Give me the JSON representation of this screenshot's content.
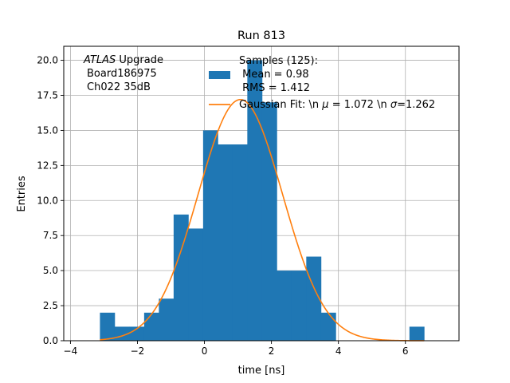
{
  "chart_data": {
    "type": "bar",
    "title": "Run 813",
    "xlabel": "time [ns]",
    "ylabel": "Entries",
    "xlim": [
      -4.2,
      7.6
    ],
    "ylim": [
      0,
      21
    ],
    "grid": true,
    "xticks": [
      -4,
      -2,
      0,
      2,
      4,
      6
    ],
    "xtick_labels": [
      "−4",
      "−2",
      "0",
      "2",
      "4",
      "6"
    ],
    "yticks": [
      0,
      2.5,
      5,
      7.5,
      10,
      12.5,
      15,
      17.5,
      20
    ],
    "ytick_labels": [
      "0.0",
      "2.5",
      "5.0",
      "7.5",
      "10.0",
      "12.5",
      "15.0",
      "17.5",
      "20.0"
    ],
    "bin_edges": [
      -3.12,
      -2.68,
      -2.24,
      -1.8,
      -1.36,
      -0.92,
      -0.48,
      -0.04,
      0.4,
      0.84,
      1.28,
      1.72,
      2.16,
      2.6,
      3.04,
      3.48,
      3.92,
      4.36,
      4.8,
      5.24,
      5.68,
      6.12,
      6.56
    ],
    "counts": [
      2,
      1,
      1,
      2,
      3,
      9,
      8,
      15,
      14,
      14,
      20,
      17,
      5,
      5,
      6,
      2,
      0,
      0,
      0,
      0,
      0,
      1
    ],
    "histogram_color": "#1f77b4",
    "fit_color": "#ff7f0e",
    "fit": {
      "mu": 1.072,
      "sigma": 1.262,
      "amplitude": 17.2
    },
    "annotation": {
      "line1_italic": "ATLAS",
      "line1_rest": " Upgrade",
      "line2": "Board186975",
      "line3": "Ch022 35dB"
    },
    "legend": {
      "placement": "top-right",
      "entries": [
        {
          "kind": "patch",
          "lines": [
            "Samples (125):",
            " Mean = 0.98",
            " RMS = 1.412"
          ]
        },
        {
          "kind": "line",
          "prefix": "Gaussian Fit: \\n ",
          "mu_symbol": "μ",
          "mid": " = 1.072 \\n ",
          "sigma_symbol": "σ",
          "suffix": "=1.262"
        }
      ]
    }
  }
}
